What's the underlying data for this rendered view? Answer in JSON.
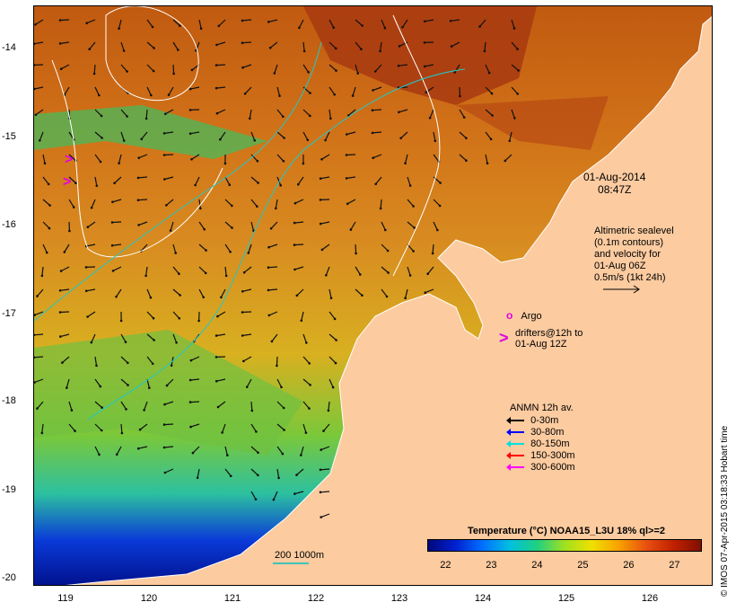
{
  "map": {
    "lat_ticks": [
      "-14",
      "-15",
      "-16",
      "-17",
      "-18",
      "-19",
      "-20"
    ],
    "lon_ticks": [
      "119",
      "120",
      "121",
      "122",
      "123",
      "124",
      "125",
      "126"
    ],
    "land_color": "#fccba0"
  },
  "timestamp": {
    "date": "01-Aug-2014",
    "time": "08:47Z"
  },
  "altimetry_note": {
    "lines": [
      "Altimetric sealevel",
      "(0.1m contours)",
      "and velocity for",
      "01-Aug 06Z",
      "0.5m/s (1kt 24h)"
    ]
  },
  "argo": {
    "symbol": "o",
    "label": "Argo",
    "color": "#e000e0"
  },
  "drifters": {
    "symbol": ">",
    "lines": [
      "drifters@12h to",
      "01-Aug 12Z"
    ],
    "color": "#e000e0"
  },
  "anmn": {
    "title": "ANMN 12h av.",
    "entries": [
      {
        "label": "0-30m",
        "color": "#000000"
      },
      {
        "label": "30-80m",
        "color": "#0000ff"
      },
      {
        "label": "80-150m",
        "color": "#00e0e0"
      },
      {
        "label": "150-300m",
        "color": "#ff0000"
      },
      {
        "label": "300-600m",
        "color": "#ff00ff"
      }
    ]
  },
  "bathymetry": {
    "label": "200  1000m",
    "color": "#00c0c0"
  },
  "colorbar": {
    "title": "Temperature (°C) NOAA15_L3U 18% ql>=2",
    "ticks": [
      "22",
      "23",
      "24",
      "25",
      "26",
      "27"
    ],
    "min": 21.6,
    "max": 27.6
  },
  "credit": "© IMOS 07-Apr-2015 03:18:33 Hobart time"
}
